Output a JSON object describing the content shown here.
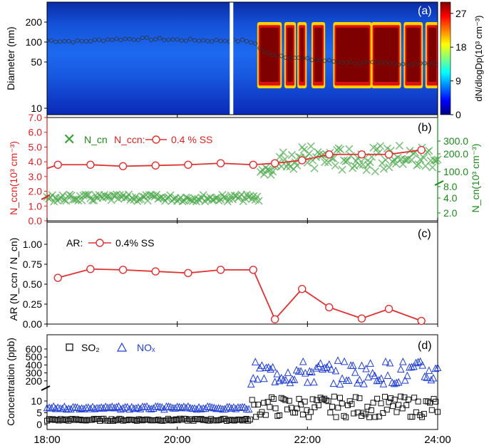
{
  "chart_data": [
    {
      "panel": "(a)",
      "type": "heatmap",
      "ylabel": "Diameter (nm)",
      "yscale": "log",
      "ylim": [
        8,
        400
      ],
      "yticks": [
        "10",
        "50",
        "100",
        "200"
      ],
      "colorbar": {
        "label": "dN/dlogDp(10³ cm⁻³)",
        "range": [
          0,
          30
        ],
        "ticks": [
          "0",
          "9",
          "18",
          "27"
        ],
        "colormap": "jet"
      },
      "x_range": [
        "18:00",
        "24:00"
      ],
      "gap_time": "20:50",
      "median_diameter": [
        {
          "t": "18:00",
          "d": 105
        },
        {
          "t": "18:30",
          "d": 102
        },
        {
          "t": "19:00",
          "d": 110
        },
        {
          "t": "19:30",
          "d": 112
        },
        {
          "t": "20:00",
          "d": 108
        },
        {
          "t": "20:30",
          "d": 105
        },
        {
          "t": "21:00",
          "d": 105
        },
        {
          "t": "21:10",
          "d": 100
        },
        {
          "t": "21:20",
          "d": 70
        },
        {
          "t": "21:40",
          "d": 60
        },
        {
          "t": "22:00",
          "d": 55
        },
        {
          "t": "22:30",
          "d": 50
        },
        {
          "t": "23:00",
          "d": 48
        },
        {
          "t": "23:30",
          "d": 47
        },
        {
          "t": "24:00",
          "d": 47
        }
      ],
      "high_concentration_bursts": [
        [
          "21:15",
          "21:35"
        ],
        [
          "21:40",
          "21:48"
        ],
        [
          "21:52",
          "21:58"
        ],
        [
          "22:05",
          "22:15"
        ],
        [
          "22:25",
          "22:58"
        ],
        [
          "23:00",
          "23:25"
        ],
        [
          "23:30",
          "23:45"
        ],
        [
          "23:50",
          "24:00"
        ]
      ]
    },
    {
      "panel": "(b)",
      "type": "scatter+line",
      "ylabel_left": "N_ccn(10³ cm⁻³)",
      "ylabel_right": "N_cn(10³ cm⁻³)",
      "legend": {
        "cn": "N_cn",
        "ccn_prefix": "N_ccn:",
        "ccn_ss": "0.4 % SS"
      },
      "left_ylim": [
        0,
        7
      ],
      "left_ticks": [
        "0.0",
        "1.0",
        "2.0",
        "3.0",
        "4.0",
        "5.0",
        "6.0",
        "7.0"
      ],
      "right_ticks": [
        "2.0",
        "4.0",
        "8.0",
        "100.0",
        "200.0",
        "300.0"
      ],
      "ccn": {
        "x": [
          "18:10",
          "18:40",
          "19:10",
          "19:40",
          "20:10",
          "20:40",
          "21:10",
          "21:30",
          "21:55",
          "22:20",
          "22:50",
          "23:15",
          "23:45"
        ],
        "y": [
          3.8,
          3.8,
          3.7,
          3.75,
          3.8,
          3.9,
          3.8,
          3.9,
          4.1,
          4.5,
          4.5,
          4.5,
          4.8
        ]
      },
      "cn": {
        "early_level": 2.5,
        "late_range": [
          60,
          250
        ]
      }
    },
    {
      "panel": "(c)",
      "type": "line",
      "ylabel": "AR (N_ccn / N_cn)",
      "ylim": [
        0,
        1
      ],
      "yticks": [
        "0.00",
        "0.25",
        "0.50",
        "0.75",
        "1.00"
      ],
      "legend": {
        "prefix": "AR:",
        "ss": "0.4% SS"
      },
      "x": [
        "18:10",
        "18:40",
        "19:10",
        "19:40",
        "20:10",
        "20:40",
        "21:10",
        "21:30",
        "21:55",
        "22:20",
        "22:50",
        "23:15",
        "23:45"
      ],
      "y": [
        0.58,
        0.69,
        0.68,
        0.66,
        0.64,
        0.68,
        0.68,
        0.06,
        0.44,
        0.21,
        0.07,
        0.19,
        0.04
      ]
    },
    {
      "panel": "(d)",
      "type": "scatter",
      "ylabel": "Concentration (ppb)",
      "yticks_lower": [
        "0",
        "5",
        "10"
      ],
      "yticks_upper": [
        "200",
        "300",
        "400",
        "500",
        "600"
      ],
      "legend": {
        "so2": "SO₂",
        "nox": "NOₓ"
      },
      "so2": {
        "early_level": 2,
        "late_range": [
          3,
          12
        ]
      },
      "nox": {
        "early_level": 7,
        "late_range": [
          150,
          450
        ]
      }
    }
  ],
  "x_ticks": [
    "18:00",
    "20:00",
    "22:00",
    "24:00"
  ]
}
